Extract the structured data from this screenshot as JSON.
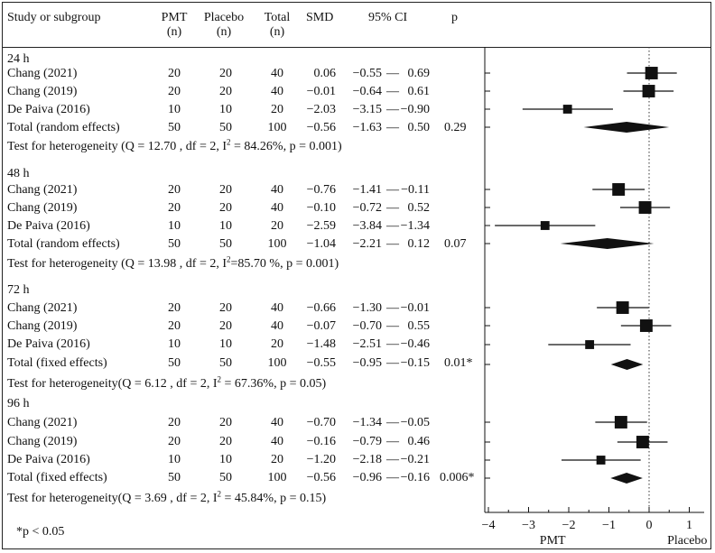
{
  "header": {
    "study": "Study or subgroup",
    "pmt": [
      "PMT",
      "(n)"
    ],
    "placebo": [
      "Placebo",
      "(n)"
    ],
    "total": [
      "Total",
      "(n)"
    ],
    "smd": "SMD",
    "ci": "95% CI",
    "p": "p"
  },
  "groups": [
    {
      "label": "24 h",
      "studies": [
        {
          "name": "Chang (2021)",
          "pmt": "20",
          "placebo": "20",
          "total": "40",
          "smd": "0.06",
          "lo": "−0.55",
          "hi": "0.69"
        },
        {
          "name": "Chang (2019)",
          "pmt": "20",
          "placebo": "20",
          "total": "40",
          "smd": "−0.01",
          "lo": "−0.64",
          "hi": "0.61"
        },
        {
          "name": "De Paiva (2016)",
          "pmt": "10",
          "placebo": "10",
          "total": "20",
          "smd": "−2.03",
          "lo": "−3.15",
          "hi": "−0.90"
        }
      ],
      "total": {
        "name": "Total (random effects)",
        "pmt": "50",
        "placebo": "50",
        "total": "100",
        "smd": "−0.56",
        "lo": "−1.63",
        "hi": "0.50",
        "p": "0.29"
      },
      "het": {
        "prefix": "Test for heterogeneity (Q = 12.70 , df = 2, I",
        "sup": "2",
        "suffix": " = 84.26%, p = 0.001)"
      }
    },
    {
      "label": "48 h",
      "studies": [
        {
          "name": "Chang (2021)",
          "pmt": "20",
          "placebo": "20",
          "total": "40",
          "smd": "−0.76",
          "lo": "−1.41",
          "hi": "−0.11"
        },
        {
          "name": "Chang (2019)",
          "pmt": "20",
          "placebo": "20",
          "total": "40",
          "smd": "−0.10",
          "lo": "−0.72",
          "hi": "0.52"
        },
        {
          "name": "De Paiva (2016)",
          "pmt": "10",
          "placebo": "10",
          "total": "20",
          "smd": "−2.59",
          "lo": "−3.84",
          "hi": "−1.34"
        }
      ],
      "total": {
        "name": "Total (random effects)",
        "pmt": "50",
        "placebo": "50",
        "total": "100",
        "smd": "−1.04",
        "lo": "−2.21",
        "hi": "0.12",
        "p": "0.07"
      },
      "het": {
        "prefix": "Test for heterogeneity (Q = 13.98 , df = 2, I",
        "sup": "2",
        "suffix": "=85.70 %, p = 0.001)"
      }
    },
    {
      "label": "72 h",
      "studies": [
        {
          "name": "Chang (2021)",
          "pmt": "20",
          "placebo": "20",
          "total": "40",
          "smd": "−0.66",
          "lo": "−1.30",
          "hi": "−0.01"
        },
        {
          "name": "Chang (2019)",
          "pmt": "20",
          "placebo": "20",
          "total": "40",
          "smd": "−0.07",
          "lo": "−0.70",
          "hi": "0.55"
        },
        {
          "name": "De Paiva (2016)",
          "pmt": "10",
          "placebo": "10",
          "total": "20",
          "smd": "−1.48",
          "lo": "−2.51",
          "hi": "−0.46"
        }
      ],
      "total": {
        "name": "Total (fixed effects)",
        "pmt": "50",
        "placebo": "50",
        "total": "100",
        "smd": "−0.55",
        "lo": "−0.95",
        "hi": "−0.15",
        "p": "0.01*"
      },
      "het": {
        "prefix": "Test for heterogeneity(Q = 6.12 , df = 2, I",
        "sup": "2",
        "suffix": " = 67.36%, p = 0.05)"
      }
    },
    {
      "label": "96 h",
      "studies": [
        {
          "name": "Chang (2021)",
          "pmt": "20",
          "placebo": "20",
          "total": "40",
          "smd": "−0.70",
          "lo": "−1.34",
          "hi": "−0.05"
        },
        {
          "name": "Chang (2019)",
          "pmt": "20",
          "placebo": "20",
          "total": "40",
          "smd": "−0.16",
          "lo": "−0.79",
          "hi": "0.46"
        },
        {
          "name": "De Paiva (2016)",
          "pmt": "10",
          "placebo": "10",
          "total": "20",
          "smd": "−1.20",
          "lo": "−2.18",
          "hi": "−0.21"
        }
      ],
      "total": {
        "name": "Total (fixed effects)",
        "pmt": "50",
        "placebo": "50",
        "total": "100",
        "smd": "−0.56",
        "lo": "−0.96",
        "hi": "−0.16",
        "p": "0.006*"
      },
      "het": {
        "prefix": "Test for heterogeneity(Q = 3.69 , df = 2, I",
        "sup": "2",
        "suffix": " = 45.84%, p = 0.15)"
      }
    }
  ],
  "footnote": "*p < 0.05",
  "chart_data": {
    "type": "forest",
    "title": "",
    "xlabel_left": "PMT",
    "xlabel_right": "Placebo",
    "xlim": [
      -4.3,
      1.2
    ],
    "xticks": [
      -4,
      -3,
      -2,
      -1,
      0,
      1
    ],
    "xtick_labels": [
      "−4",
      "−3",
      "−2",
      "−1",
      "0",
      "1"
    ],
    "reference_line": 0,
    "series": [
      {
        "name": "24 h",
        "studies": [
          {
            "smd": 0.06,
            "lo": -0.55,
            "hi": 0.69,
            "weight": 40
          },
          {
            "smd": -0.01,
            "lo": -0.64,
            "hi": 0.61,
            "weight": 40
          },
          {
            "smd": -2.03,
            "lo": -3.15,
            "hi": -0.9,
            "weight": 20
          }
        ],
        "pooled": {
          "smd": -0.56,
          "lo": -1.63,
          "hi": 0.5
        }
      },
      {
        "name": "48 h",
        "studies": [
          {
            "smd": -0.76,
            "lo": -1.41,
            "hi": -0.11,
            "weight": 40
          },
          {
            "smd": -0.1,
            "lo": -0.72,
            "hi": 0.52,
            "weight": 40
          },
          {
            "smd": -2.59,
            "lo": -3.84,
            "hi": -1.34,
            "weight": 20
          }
        ],
        "pooled": {
          "smd": -1.04,
          "lo": -2.21,
          "hi": 0.12
        }
      },
      {
        "name": "72 h",
        "studies": [
          {
            "smd": -0.66,
            "lo": -1.3,
            "hi": -0.01,
            "weight": 40
          },
          {
            "smd": -0.07,
            "lo": -0.7,
            "hi": 0.55,
            "weight": 40
          },
          {
            "smd": -1.48,
            "lo": -2.51,
            "hi": -0.46,
            "weight": 20
          }
        ],
        "pooled": {
          "smd": -0.55,
          "lo": -0.95,
          "hi": -0.15
        }
      },
      {
        "name": "96 h",
        "studies": [
          {
            "smd": -0.7,
            "lo": -1.34,
            "hi": -0.05,
            "weight": 40
          },
          {
            "smd": -0.16,
            "lo": -0.79,
            "hi": 0.46,
            "weight": 40
          },
          {
            "smd": -1.2,
            "lo": -2.18,
            "hi": -0.21,
            "weight": 20
          }
        ],
        "pooled": {
          "smd": -0.56,
          "lo": -0.96,
          "hi": -0.16
        }
      }
    ]
  }
}
